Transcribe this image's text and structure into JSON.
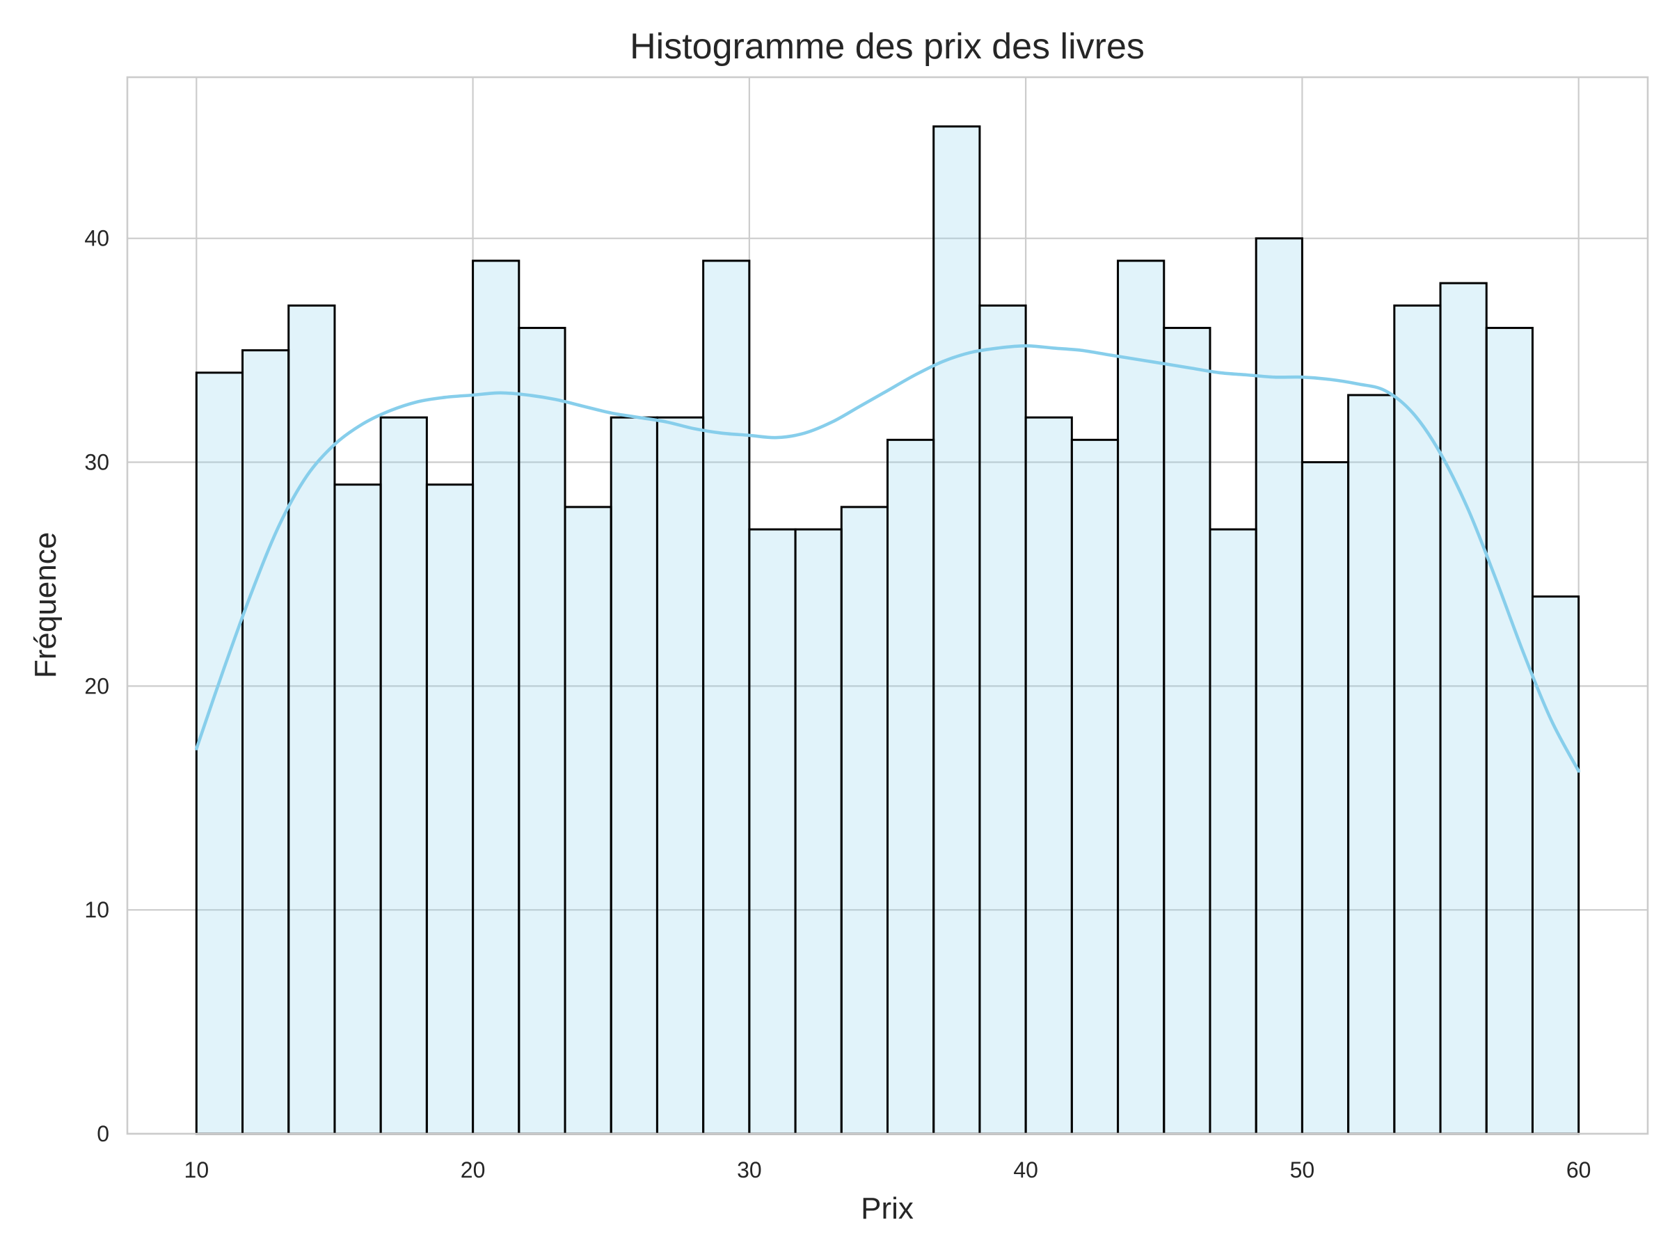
{
  "chart_data": {
    "type": "bar",
    "subtype": "histogram",
    "title": "Histogramme des prix des livres",
    "xlabel": "Prix",
    "ylabel": "Fréquence",
    "xlim": [
      7.5,
      62.5
    ],
    "ylim": [
      0,
      47.2
    ],
    "x_ticks": [
      10,
      20,
      30,
      40,
      50,
      60
    ],
    "y_ticks": [
      0,
      10,
      20,
      30,
      40
    ],
    "grid": true,
    "bin_start": 10,
    "bin_end": 60,
    "values": [
      34,
      35,
      37,
      29,
      32,
      29,
      39,
      36,
      28,
      32,
      32,
      39,
      27,
      27,
      28,
      31,
      45,
      37,
      32,
      31,
      39,
      36,
      27,
      40,
      30,
      33,
      37,
      38,
      36,
      24
    ],
    "kde": {
      "x": [
        10,
        11,
        12,
        13,
        14,
        15,
        16,
        17,
        18,
        19,
        20,
        21,
        22,
        23,
        24,
        25,
        26,
        27,
        28,
        29,
        30,
        31,
        32,
        33,
        34,
        35,
        36,
        37,
        38,
        39,
        40,
        41,
        42,
        43,
        44,
        45,
        46,
        47,
        48,
        49,
        50,
        51,
        52,
        53,
        54,
        55,
        56,
        57,
        58,
        59,
        60
      ],
      "y": [
        17.2,
        20.8,
        24.2,
        27.2,
        29.4,
        30.8,
        31.7,
        32.3,
        32.7,
        32.9,
        33.0,
        33.1,
        33.0,
        32.8,
        32.5,
        32.2,
        32.0,
        31.8,
        31.5,
        31.3,
        31.2,
        31.1,
        31.3,
        31.8,
        32.5,
        33.2,
        33.9,
        34.5,
        34.9,
        35.1,
        35.2,
        35.1,
        35.0,
        34.8,
        34.6,
        34.4,
        34.2,
        34.0,
        33.9,
        33.8,
        33.8,
        33.7,
        33.5,
        33.2,
        32.2,
        30.4,
        27.9,
        24.8,
        21.5,
        18.5,
        16.2
      ]
    },
    "colors": {
      "kde_line": "#87ceeb",
      "bar_fill": "#87ceeb",
      "bar_edge": "#000000",
      "grid": "#cccccc"
    }
  }
}
